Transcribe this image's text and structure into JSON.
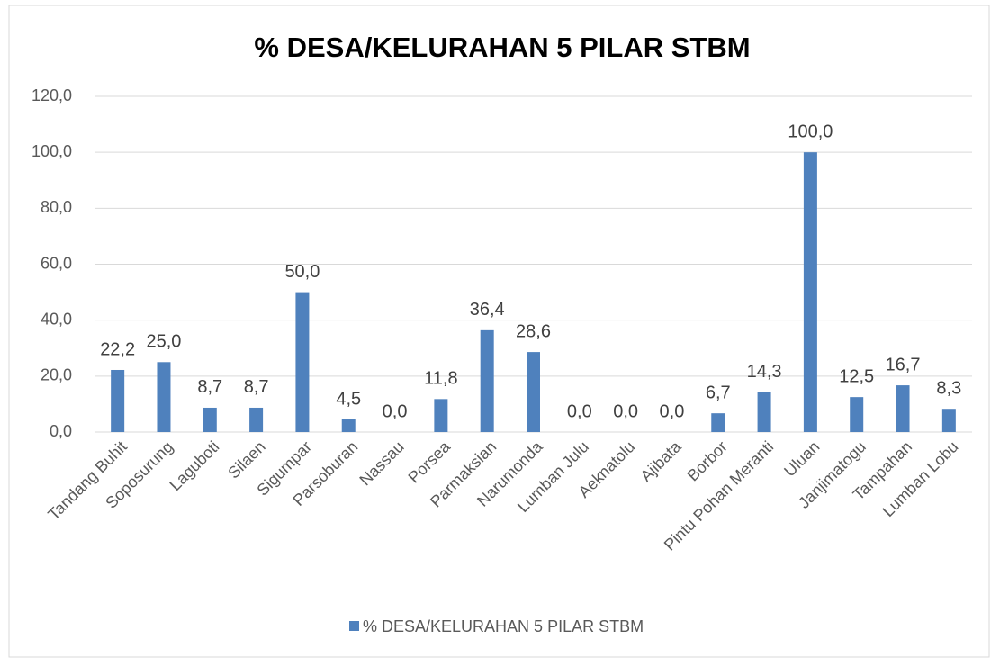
{
  "chart_data": {
    "type": "bar",
    "title": "% DESA/KELURAHAN 5 PILAR STBM",
    "categories": [
      "Tandang Buhit",
      "Soposurung",
      "Laguboti",
      "Silaen",
      "Sigumpar",
      "Parsoburan",
      "Nassau",
      "Porsea",
      "Parmaksian",
      "Narumonda",
      "Lumban Julu",
      "Aeknatolu",
      "Ajibata",
      "Borbor",
      "Pintu Pohan Meranti",
      "Uluan",
      "Janjimatogu",
      "Tampahan",
      "Lumban Lobu"
    ],
    "series": [
      {
        "name": "% DESA/KELURAHAN 5 PILAR STBM",
        "color": "#4f81bd",
        "values": [
          22.2,
          25.0,
          8.7,
          8.7,
          50.0,
          4.5,
          0.0,
          11.8,
          36.4,
          28.6,
          0.0,
          0.0,
          0.0,
          6.7,
          14.3,
          100.0,
          12.5,
          16.7,
          8.3
        ],
        "value_labels": [
          "22,2",
          "25,0",
          "8,7",
          "8,7",
          "50,0",
          "4,5",
          "0,0",
          "11,8",
          "36,4",
          "28,6",
          "0,0",
          "0,0",
          "0,0",
          "6,7",
          "14,3",
          "100,0",
          "12,5",
          "16,7",
          "8,3"
        ]
      }
    ],
    "ylim": [
      0,
      120
    ],
    "yticks": [
      {
        "value": 0,
        "label": "0,0"
      },
      {
        "value": 20,
        "label": "20,0"
      },
      {
        "value": 40,
        "label": "40,0"
      },
      {
        "value": 60,
        "label": "60,0"
      },
      {
        "value": 80,
        "label": "80,0"
      },
      {
        "value": 100,
        "label": "100,0"
      },
      {
        "value": 120,
        "label": "120,0"
      }
    ],
    "grid": true,
    "legend": "bottom"
  }
}
